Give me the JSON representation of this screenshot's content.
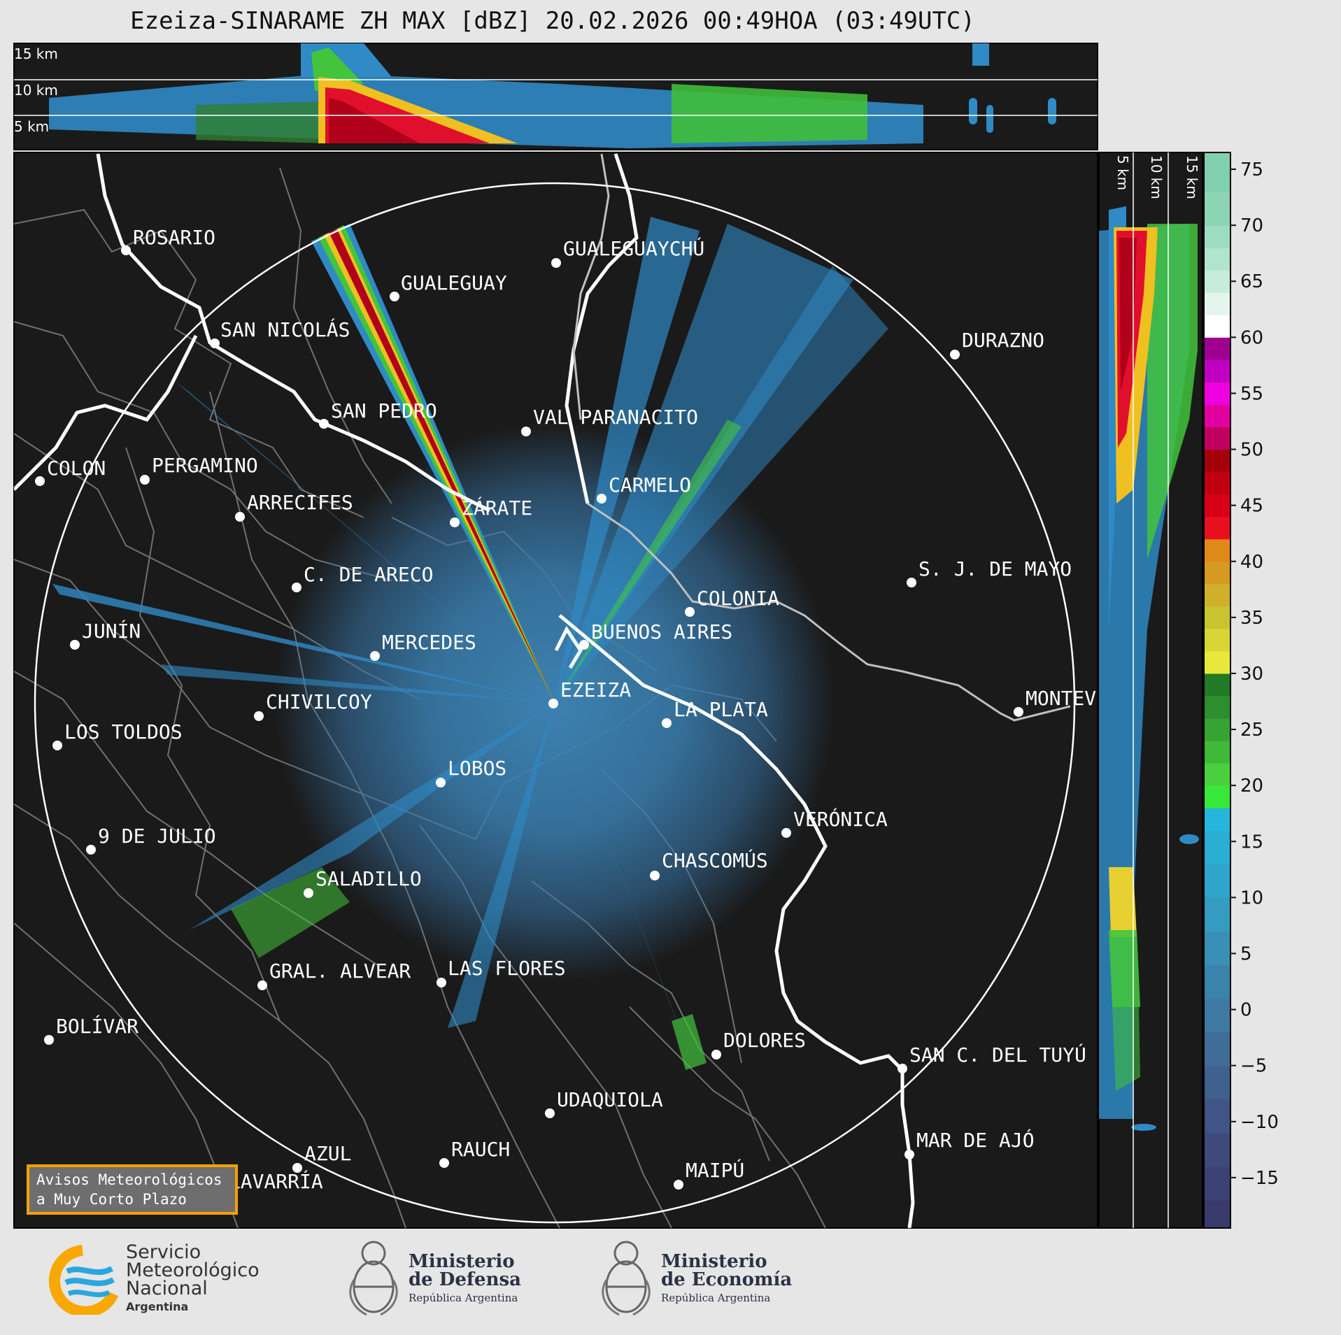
{
  "title": "Ezeiza-SINARAME ZH MAX [dBZ] 20.02.2026 00:49HOA (03:49UTC)",
  "top_panel": {
    "height_labels": [
      "15 km",
      "10 km",
      "5 km"
    ]
  },
  "side_panel": {
    "height_labels": [
      "5 km",
      "10 km",
      "15 km"
    ]
  },
  "colorbar": {
    "ticks": [
      "75",
      "70",
      "65",
      "60",
      "55",
      "50",
      "45",
      "40",
      "35",
      "30",
      "25",
      "20",
      "15",
      "10",
      "5",
      "0",
      "−5",
      "−10",
      "−15"
    ],
    "range": [
      -19.5,
      76.5
    ]
  },
  "cities": [
    {
      "name": "ROSARIO"
    },
    {
      "name": "GUALEGUAYCHÚ"
    },
    {
      "name": "GUALEGUAY"
    },
    {
      "name": "SAN NICOLÁS"
    },
    {
      "name": "DURAZNO"
    },
    {
      "name": "SAN PEDRO"
    },
    {
      "name": "VAL PARANACITO"
    },
    {
      "name": "COLON"
    },
    {
      "name": "PERGAMINO"
    },
    {
      "name": "CARMELO"
    },
    {
      "name": "ARRECIFES"
    },
    {
      "name": "ZÁRATE"
    },
    {
      "name": "S. J. DE MAYO"
    },
    {
      "name": "C. DE ARECO"
    },
    {
      "name": "COLONIA"
    },
    {
      "name": "JUNÍN"
    },
    {
      "name": "BUENOS AIRES"
    },
    {
      "name": "MERCEDES"
    },
    {
      "name": "EZEIZA"
    },
    {
      "name": "MONTEV"
    },
    {
      "name": "CHIVILCOY"
    },
    {
      "name": "LA PLATA"
    },
    {
      "name": "LOS TOLDOS"
    },
    {
      "name": "LOBOS"
    },
    {
      "name": "VERÓNICA"
    },
    {
      "name": "9 DE JULIO"
    },
    {
      "name": "CHASCOMÚS"
    },
    {
      "name": "SALADILLO"
    },
    {
      "name": "GRAL. ALVEAR"
    },
    {
      "name": "LAS FLORES"
    },
    {
      "name": "BOLÍVAR"
    },
    {
      "name": "DOLORES"
    },
    {
      "name": "SAN C. DEL TUYÚ"
    },
    {
      "name": "UDAQUIOLA"
    },
    {
      "name": "MAR DE AJÓ"
    },
    {
      "name": "AZUL"
    },
    {
      "name": "RAUCH"
    },
    {
      "name": "OLAVARRÍA"
    },
    {
      "name": "MAIPÚ"
    }
  ],
  "aviso": {
    "line1": "Avisos Meteorológicos",
    "line2": "a Muy Corto Plazo"
  },
  "logos": {
    "smn": {
      "line1": "Servicio",
      "line2": "Meteorológico",
      "line3": "Nacional",
      "line4": "Argentina"
    },
    "defensa": {
      "line1": "Ministerio",
      "line2": "de Defensa",
      "line3": "República Argentina"
    },
    "economia": {
      "line1": "Ministerio",
      "line2": "de Economía",
      "line3": "República Argentina"
    }
  },
  "colors": {
    "frame_bg": "#1a1a1a",
    "page_bg": "#e6e6e6",
    "aviso_border": "#f5a100",
    "smn_blue": "#2aa6dd",
    "smn_orange": "#f8a800"
  }
}
